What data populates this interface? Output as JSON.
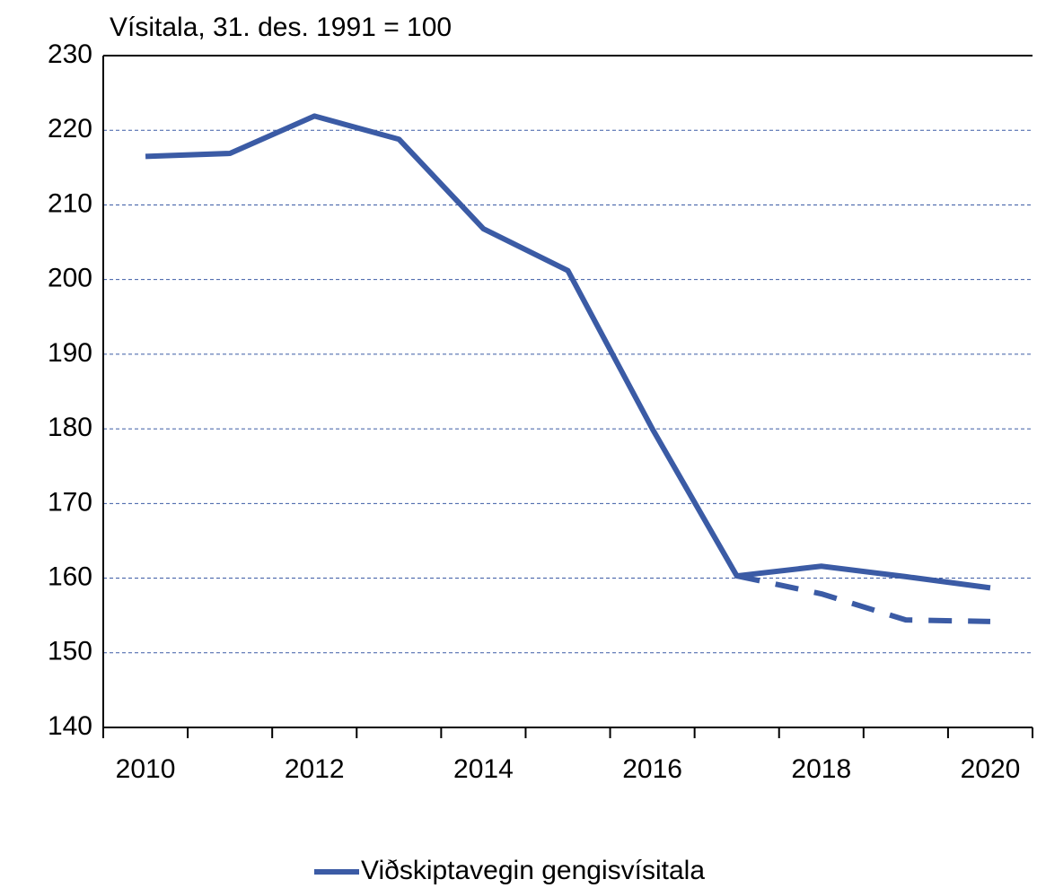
{
  "chart_data": {
    "type": "line",
    "y_label": "Vísitala, 31. des. 1991 = 100",
    "categories": [
      "2010",
      null,
      "2012",
      null,
      "2014",
      null,
      "2016",
      null,
      "2018",
      null,
      "2020"
    ],
    "series": [
      {
        "name": "Viðskiptavegin gengisvísitala",
        "color": "#3b5ba5",
        "values": [
          216.5,
          216.9,
          221.9,
          218.8,
          206.8,
          201.2,
          180.0,
          160.3,
          161.6,
          160.2,
          158.7
        ]
      },
      {
        "color": "#3b5ba5",
        "dashed": true,
        "values": [
          null,
          null,
          null,
          null,
          null,
          null,
          null,
          160.3,
          157.9,
          154.4,
          154.2
        ]
      }
    ],
    "ylim": [
      140,
      230
    ],
    "yticks": [
      140,
      150,
      160,
      170,
      180,
      190,
      200,
      210,
      220,
      230
    ],
    "grid": true,
    "legend": "bottom"
  }
}
